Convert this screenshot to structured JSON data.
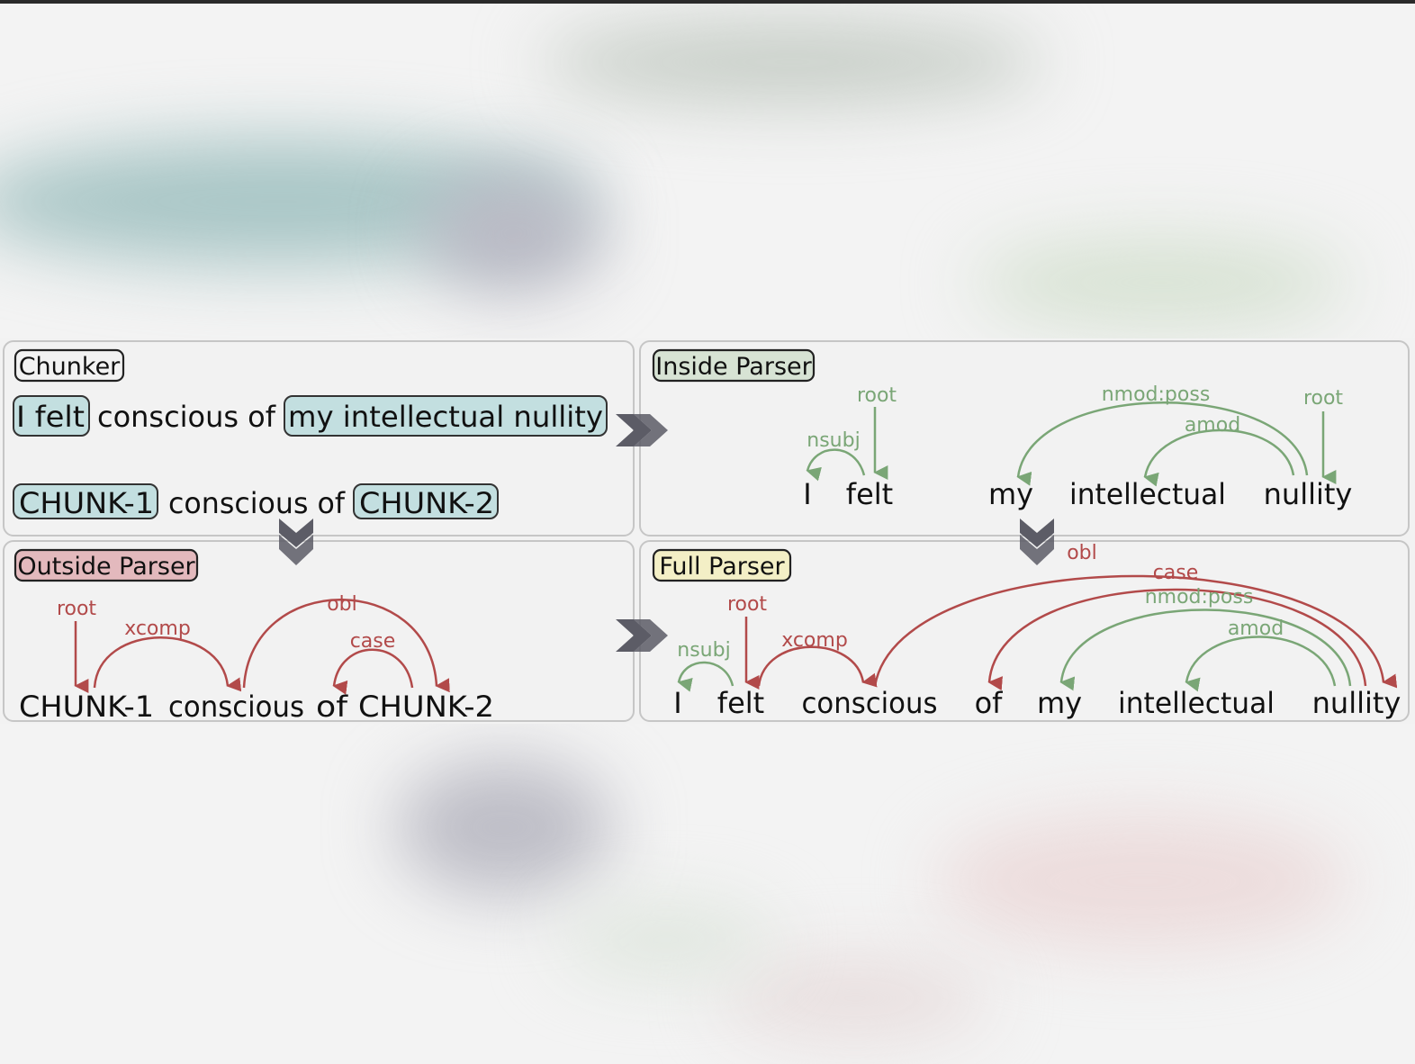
{
  "panels": {
    "chunker": {
      "title": "Chunker",
      "sentence_words": [
        "I felt",
        "conscious of",
        "my intellectual nullity"
      ],
      "chunk_row": [
        "CHUNK-1",
        "conscious of",
        "CHUNK-2"
      ]
    },
    "inside": {
      "title": "Inside Parser",
      "words": [
        "I",
        "felt",
        "my",
        "intellectual",
        "nullity"
      ],
      "labels": [
        "root",
        "nsubj",
        "nmod:poss",
        "amod",
        "root"
      ]
    },
    "outside": {
      "title": "Outside Parser",
      "words": [
        "CHUNK-1",
        "conscious",
        "of",
        "CHUNK-2"
      ],
      "labels": [
        "root",
        "xcomp",
        "obl",
        "case"
      ]
    },
    "full": {
      "title": "Full Parser",
      "words": [
        "I",
        "felt",
        "conscious",
        "of",
        "my",
        "intellectual",
        "nullity"
      ],
      "labels": [
        "root",
        "nsubj",
        "xcomp",
        "obl",
        "case",
        "nmod:poss",
        "amod"
      ]
    }
  },
  "colors": {
    "green": "#7aa676",
    "red": "#b24a4a",
    "chunk_fill": "#c3dfe0",
    "chunker_tag": "#f2f2f2",
    "inside_tag": "#d7e3d4",
    "outside_tag": "#e3b9bd",
    "full_tag": "#f3efc6",
    "chevron": "#5c5c66"
  }
}
